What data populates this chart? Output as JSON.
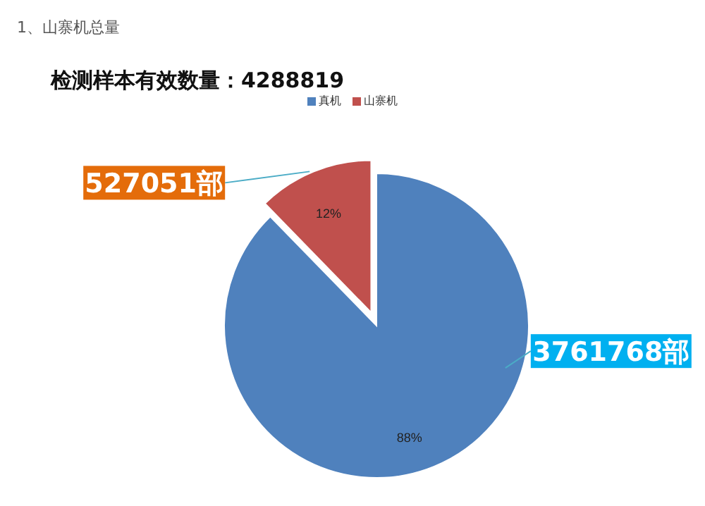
{
  "chart_data": {
    "type": "pie",
    "title": "1、山寨机总量",
    "subtitle": "检测样本有效数量：4288819",
    "categories": [
      "真机",
      "山寨机"
    ],
    "values": [
      3761768,
      527051
    ],
    "colors": [
      "#4f81bd",
      "#c0504d"
    ],
    "value_labels": [
      "3761768部",
      "527051部"
    ],
    "annotations": [
      "88%",
      "12%"
    ],
    "legend": "top"
  }
}
